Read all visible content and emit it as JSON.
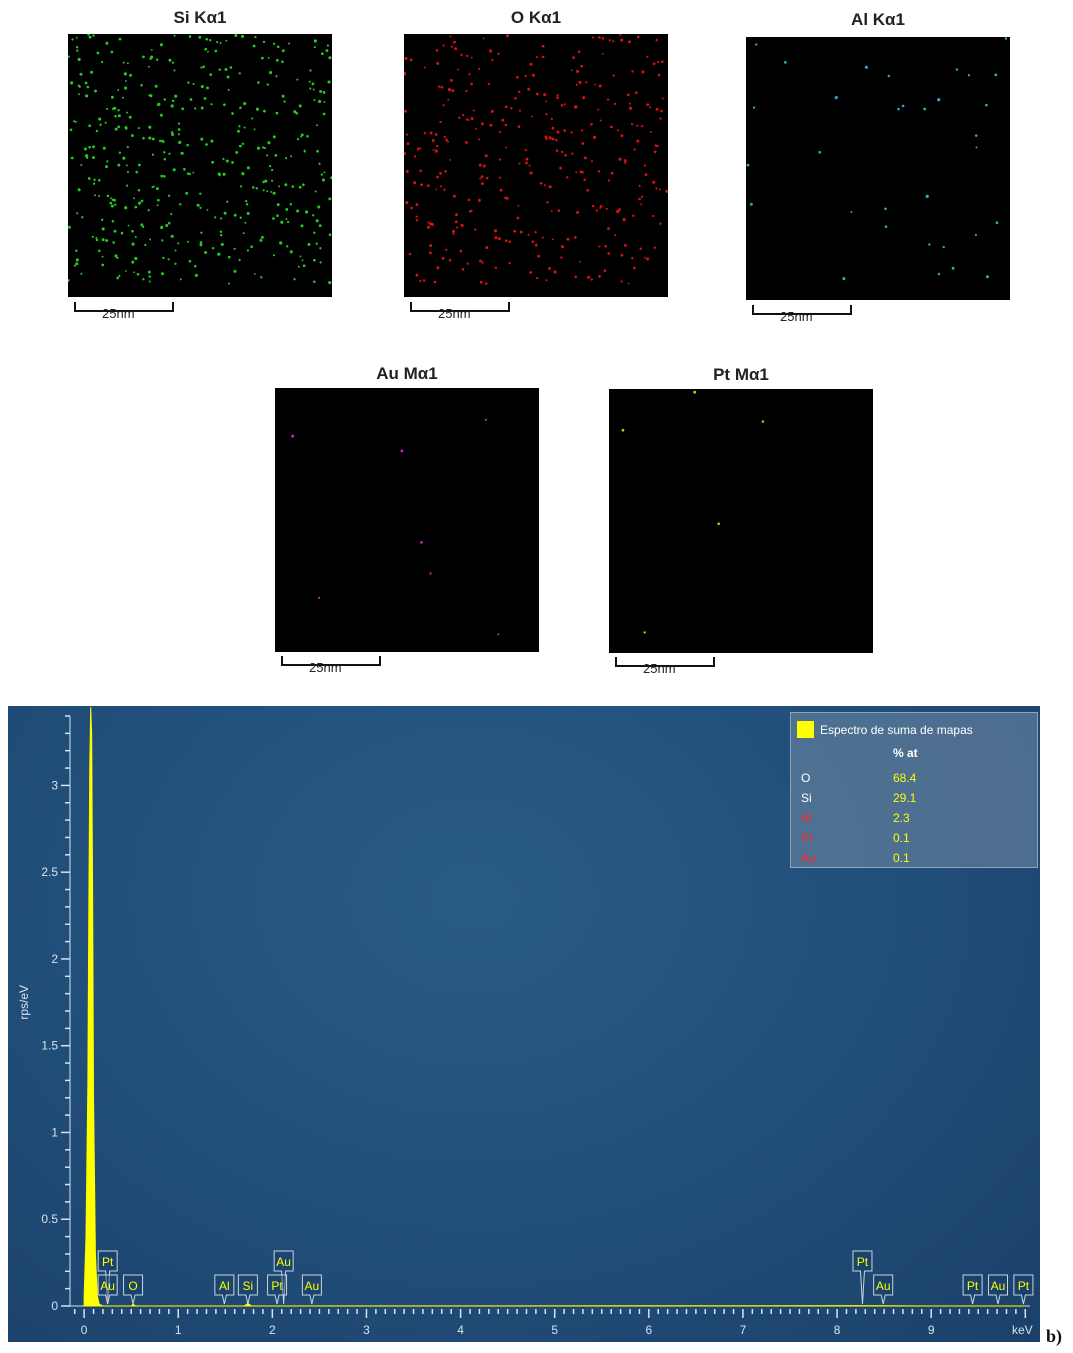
{
  "maps": [
    {
      "title": "Si Kα1",
      "scale": "25nm",
      "color": "#22cc22",
      "dots": 420,
      "seed": 11
    },
    {
      "title": "O Kα1",
      "scale": "25nm",
      "color": "#dd1111",
      "dots": 330,
      "seed": 23
    },
    {
      "title": "Al Kα1",
      "scale": "25nm",
      "color": "#33aacc",
      "dots": 32,
      "seed": 37
    },
    {
      "title": "Au Mα1",
      "scale": "25nm",
      "color": "#cc22cc",
      "dots": 7,
      "seed": 41
    },
    {
      "title": "Pt Mα1",
      "scale": "25nm",
      "color": "#cccc00",
      "dots": 5,
      "seed": 53
    }
  ],
  "chart_data": {
    "type": "area",
    "title": "",
    "xlabel": "keV",
    "ylabel": "rps/eV",
    "xlim": [
      -0.15,
      10.05
    ],
    "ylim": [
      0,
      3.4
    ],
    "x_ticks": [
      0,
      1,
      2,
      3,
      4,
      5,
      6,
      7,
      8,
      9
    ],
    "y_ticks": [
      0,
      0.5,
      1,
      1.5,
      2,
      2.5,
      3
    ],
    "y_tick_labels": [
      "0",
      "0.5",
      "1",
      "1.5",
      "2",
      "2.5",
      "3"
    ],
    "series": [
      {
        "name": "Espectro de suma de mapas",
        "color": "#ffff00",
        "x": [
          0.0,
          0.02,
          0.04,
          0.05,
          0.06,
          0.07,
          0.08,
          0.09,
          0.1,
          0.12,
          0.14,
          0.16,
          0.2,
          0.5,
          0.52,
          0.55,
          1.7,
          1.74,
          1.78,
          8.2,
          9.0,
          10.0
        ],
        "y": [
          0.05,
          0.4,
          1.3,
          2.3,
          3.1,
          3.45,
          3.3,
          2.4,
          1.2,
          0.3,
          0.06,
          0.01,
          0.0,
          0.0,
          0.01,
          0.0,
          0.0,
          0.015,
          0.0,
          0.002,
          0.0,
          0.0
        ]
      }
    ],
    "peak_labels": [
      {
        "label": "Pt",
        "x": 0.25,
        "row": 2
      },
      {
        "label": "Au",
        "x": 0.25,
        "row": 1
      },
      {
        "label": "O",
        "x": 0.52,
        "row": 1
      },
      {
        "label": "Al",
        "x": 1.49,
        "row": 1
      },
      {
        "label": "Si",
        "x": 1.74,
        "row": 1
      },
      {
        "label": "Au",
        "x": 2.12,
        "row": 2
      },
      {
        "label": "Pt",
        "x": 2.05,
        "row": 1
      },
      {
        "label": "Au",
        "x": 2.42,
        "row": 1
      },
      {
        "label": "Pt",
        "x": 8.27,
        "row": 2
      },
      {
        "label": "Au",
        "x": 8.49,
        "row": 1
      },
      {
        "label": "Pt",
        "x": 9.44,
        "row": 1
      },
      {
        "label": "Au",
        "x": 9.71,
        "row": 1
      },
      {
        "label": "Pt",
        "x": 9.98,
        "row": 1
      }
    ],
    "legend": {
      "title": "Espectro de suma de mapas",
      "column_header": "% at",
      "placement": "top-right",
      "rows": [
        {
          "element": "O",
          "value": "68.4",
          "color": "#ffffff"
        },
        {
          "element": "Si",
          "value": "29.1",
          "color": "#ffffff"
        },
        {
          "element": "Al",
          "value": "2.3",
          "color": "#ff2222"
        },
        {
          "element": "Pt",
          "value": "0.1",
          "color": "#ff2222"
        },
        {
          "element": "Au",
          "value": "0.1",
          "color": "#ff2222"
        }
      ]
    },
    "background_color": "#22507c",
    "panel_label": "b)"
  }
}
